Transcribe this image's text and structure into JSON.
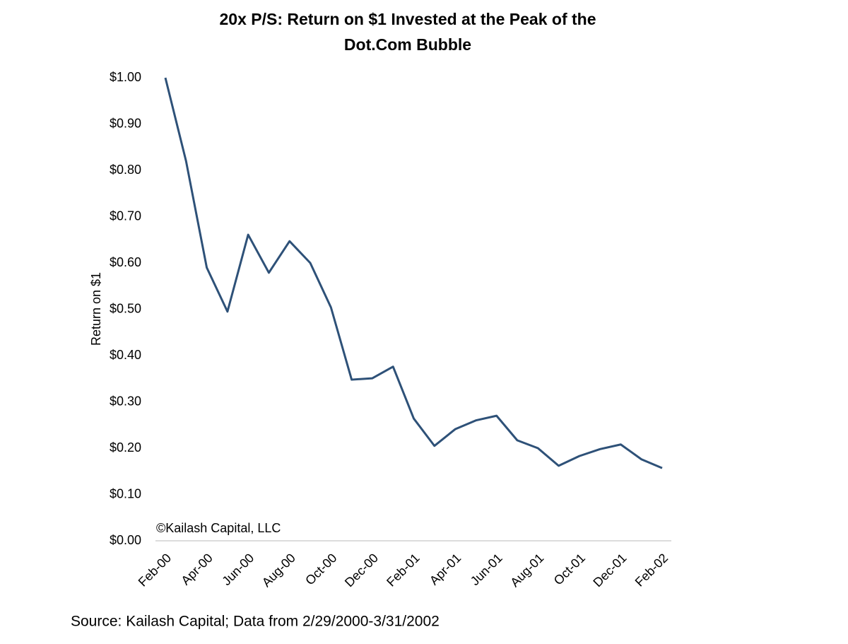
{
  "chart_data": {
    "type": "line",
    "title": [
      "20x P/S: Return on $1 Invested at the Peak of the",
      "Dot.Com Bubble"
    ],
    "y_label": "Return on $1",
    "annotation": "©Kailash Capital, LLC",
    "source": "Source: Kailash Capital; Data from 2/29/2000-3/31/2002",
    "categories": [
      "Feb-00",
      null,
      "Apr-00",
      null,
      "Jun-00",
      null,
      "Aug-00",
      null,
      "Oct-00",
      null,
      "Dec-00",
      null,
      "Feb-01",
      null,
      "Apr-01",
      null,
      "Jun-01",
      null,
      "Aug-01",
      null,
      "Oct-01",
      null,
      "Dec-01",
      null,
      "Feb-02"
    ],
    "series": [
      {
        "color": "#2e5178",
        "values": [
          1.0,
          0.82,
          0.59,
          0.495,
          0.661,
          0.579,
          0.647,
          0.6,
          0.504,
          0.348,
          0.351,
          0.376,
          0.264,
          0.205,
          0.241,
          0.26,
          0.27,
          0.217,
          0.2,
          0.162,
          0.183,
          0.198,
          0.208,
          0.176,
          0.157
        ]
      }
    ],
    "ylim": [
      0,
      1.0
    ],
    "yticks": [
      {
        "value": 0,
        "label": "$0.00"
      },
      {
        "value": 0.1,
        "label": "$0.10"
      },
      {
        "value": 0.2,
        "label": "$0.20"
      },
      {
        "value": 0.3,
        "label": "$0.30"
      },
      {
        "value": 0.4,
        "label": "$0.40"
      },
      {
        "value": 0.5,
        "label": "$0.50"
      },
      {
        "value": 0.6,
        "label": "$0.60"
      },
      {
        "value": 0.7,
        "label": "$0.70"
      },
      {
        "value": 0.8,
        "label": "$0.80"
      },
      {
        "value": 0.9,
        "label": "$0.90"
      },
      {
        "value": 1.0,
        "label": "$1.00"
      }
    ],
    "grid": false
  }
}
